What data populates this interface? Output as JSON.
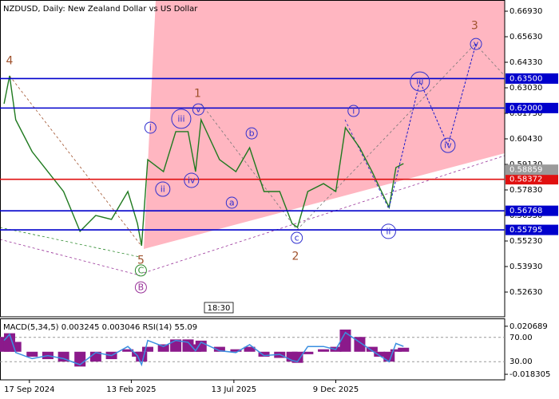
{
  "chart_data": {
    "type": "line",
    "title": "NZDUSD, Daily:  New Zealand Dollar vs US Dollar",
    "x": [
      "2024-08-11",
      "2024-08-19",
      "2024-08-28",
      "2024-09-21",
      "2024-10-14",
      "2024-11-06",
      "2024-11-30",
      "2024-12-23",
      "2025-01-15",
      "2025-02-08",
      "2025-02-22",
      "2025-02-28",
      "2025-03-09",
      "2025-04-01",
      "2025-04-19",
      "2025-05-07",
      "2025-05-18",
      "2025-05-26",
      "2025-06-22",
      "2025-07-16",
      "2025-08-05",
      "2025-08-26",
      "2025-09-18",
      "2025-10-06",
      "2025-10-14",
      "2025-10-29",
      "2025-11-21",
      "2025-12-09",
      "2025-12-23",
      "2026-01-13",
      "2026-01-31",
      "2026-02-11",
      "2026-02-25",
      "2026-03-07",
      "2026-03-18"
    ],
    "values": [
      0.6222,
      0.6364,
      0.614,
      0.5978,
      0.5876,
      0.5775,
      0.5572,
      0.5653,
      0.5633,
      0.5775,
      0.5612,
      0.5499,
      0.5937,
      0.5876,
      0.608,
      0.608,
      0.5876,
      0.614,
      0.5937,
      0.5876,
      0.5998,
      0.5775,
      0.5775,
      0.5612,
      0.5592,
      0.5775,
      0.5815,
      0.5775,
      0.61,
      0.5998,
      0.5876,
      0.5795,
      0.5694,
      0.5897,
      0.5917
    ],
    "color": "#1f7a1f",
    "xlim": [
      "2024-08-05",
      "2026-08-13"
    ],
    "xticks": [
      {
        "value": "2024-09-17",
        "label": "17 Sep 2024"
      },
      {
        "value": "2025-02-13",
        "label": "13 Feb 2025"
      },
      {
        "value": "2025-07-13",
        "label": "13 Jul 2025"
      },
      {
        "value": "2025-12-09",
        "label": "9 Dec 2025"
      }
    ],
    "ylim": [
      0.5137,
      0.675
    ],
    "yticks": [
      {
        "value": 0.6693,
        "label": "0.66930"
      },
      {
        "value": 0.6563,
        "label": "0.65630"
      },
      {
        "value": 0.6433,
        "label": "0.64330"
      },
      {
        "value": 0.6303,
        "label": "0.63030"
      },
      {
        "value": 0.6173,
        "label": "0.61730"
      },
      {
        "value": 0.6043,
        "label": "0.60430"
      },
      {
        "value": 0.5913,
        "label": "0.59130"
      },
      {
        "value": 0.5783,
        "label": "0.57830"
      },
      {
        "value": 0.5653,
        "label": "0.56530"
      },
      {
        "value": 0.5523,
        "label": "0.55230"
      },
      {
        "value": 0.5393,
        "label": "0.53930"
      },
      {
        "value": 0.5263,
        "label": "0.52630"
      }
    ],
    "forecast": {
      "x": [
        "2026-02-25",
        "2026-04-11",
        "2026-05-22",
        "2026-07-02"
      ],
      "values": [
        0.5694,
        0.6336,
        0.601,
        0.6527
      ],
      "color": "#1a1acc"
    },
    "levels": [
      {
        "value": 0.635,
        "label": "0.63500",
        "color": "#0000cc"
      },
      {
        "value": 0.62,
        "label": "0.62000",
        "color": "#0000cc"
      },
      {
        "value": 0.58372,
        "label": "0.58372",
        "color": "#e01010"
      },
      {
        "value": 0.56768,
        "label": "0.56768",
        "color": "#0000cc"
      },
      {
        "value": 0.55795,
        "label": "0.55795",
        "color": "#0000cc"
      }
    ],
    "current_price": {
      "value": 0.58859,
      "label": "0.58859",
      "color": "#9a9a9a"
    },
    "annotations": [
      {
        "text": "4",
        "x": "2024-08-19",
        "y": 0.6441,
        "color": "#a0522d",
        "circle": false
      },
      {
        "text": "5",
        "x": "2025-02-27",
        "y": 0.5425,
        "color": "#a0522d",
        "circle": false
      },
      {
        "text": "C",
        "x": "2025-02-27",
        "y": 0.5373,
        "color": "#2e8b2e",
        "circle": true
      },
      {
        "text": "B",
        "x": "2025-02-27",
        "y": 0.5287,
        "color": "#993399",
        "circle": true
      },
      {
        "text": "1",
        "x": "2025-05-21",
        "y": 0.6275,
        "color": "#a0522d",
        "circle": false
      },
      {
        "text": "2",
        "x": "2025-10-11",
        "y": 0.5446,
        "color": "#a0522d",
        "circle": false
      },
      {
        "text": "3",
        "x": "2026-06-30",
        "y": 0.662,
        "color": "#a0522d",
        "circle": false
      },
      {
        "text": "i",
        "x": "2025-03-13",
        "y": 0.61,
        "color": "#2f2fcf",
        "circle": true
      },
      {
        "text": "ii",
        "x": "2025-03-31",
        "y": 0.5787,
        "color": "#2f2fcf",
        "circle": true
      },
      {
        "text": "iii",
        "x": "2025-04-27",
        "y": 0.6145,
        "color": "#2f2fcf",
        "circle": true
      },
      {
        "text": "iv",
        "x": "2025-05-12",
        "y": 0.5832,
        "color": "#2f2fcf",
        "circle": true
      },
      {
        "text": "v",
        "x": "2025-05-22",
        "y": 0.6193,
        "color": "#2f2fcf",
        "circle": true
      },
      {
        "text": "a",
        "x": "2025-07-10",
        "y": 0.5718,
        "color": "#2f2fcf",
        "circle": true
      },
      {
        "text": "b",
        "x": "2025-08-08",
        "y": 0.6071,
        "color": "#2f2fcf",
        "circle": true
      },
      {
        "text": "c",
        "x": "2025-10-13",
        "y": 0.5539,
        "color": "#2f2fcf",
        "circle": true
      },
      {
        "text": "i",
        "x": "2026-01-04",
        "y": 0.6185,
        "color": "#2f2fcf",
        "circle": true
      },
      {
        "text": "ii",
        "x": "2026-02-24",
        "y": 0.5572,
        "color": "#2f2fcf",
        "circle": true
      },
      {
        "text": "iii",
        "x": "2026-04-11",
        "y": 0.6335,
        "color": "#2f2fcf",
        "circle": true
      },
      {
        "text": "iv",
        "x": "2026-05-22",
        "y": 0.601,
        "color": "#2f2fcf",
        "circle": true
      },
      {
        "text": "v",
        "x": "2026-07-02",
        "y": 0.6526,
        "color": "#2f2fcf",
        "circle": true
      }
    ],
    "time_label": "18:30",
    "indicator": {
      "title": "MACD(5,34,5) 0.003245 0.003046 RSI(14) 55.09",
      "macd": {
        "color": "#8b1a8b",
        "values": [
          0.012,
          0.015,
          0.008,
          -0.004,
          -0.006,
          -0.008,
          -0.012,
          -0.008,
          -0.006,
          0.002,
          -0.004,
          -0.008,
          0.004,
          0.006,
          0.01,
          0.01,
          0.006,
          0.009,
          0.004,
          0.002,
          0.004,
          -0.004,
          -0.005,
          -0.008,
          -0.009,
          -0.002,
          0.002,
          0.004,
          0.018,
          0.012,
          0.004,
          -0.004,
          -0.008,
          0.002,
          0.003245
        ]
      },
      "rsi": {
        "color": "#3a8fe0",
        "values": [
          65,
          75,
          45,
          35,
          40,
          35,
          25,
          45,
          40,
          55,
          40,
          25,
          65,
          55,
          65,
          62,
          48,
          62,
          48,
          45,
          58,
          40,
          42,
          32,
          30,
          55,
          55,
          50,
          78,
          62,
          48,
          40,
          30,
          60,
          55.09
        ]
      },
      "macd_lim": [
        -0.0228,
        0.0264
      ],
      "macd_ticks": [
        0.020689,
        -0.018305
      ],
      "rsi_lim": [
        0,
        100
      ],
      "rsi_ticks": [
        {
          "value": 70,
          "label": "70.00"
        },
        {
          "value": 30,
          "label": "30.00"
        }
      ]
    }
  }
}
